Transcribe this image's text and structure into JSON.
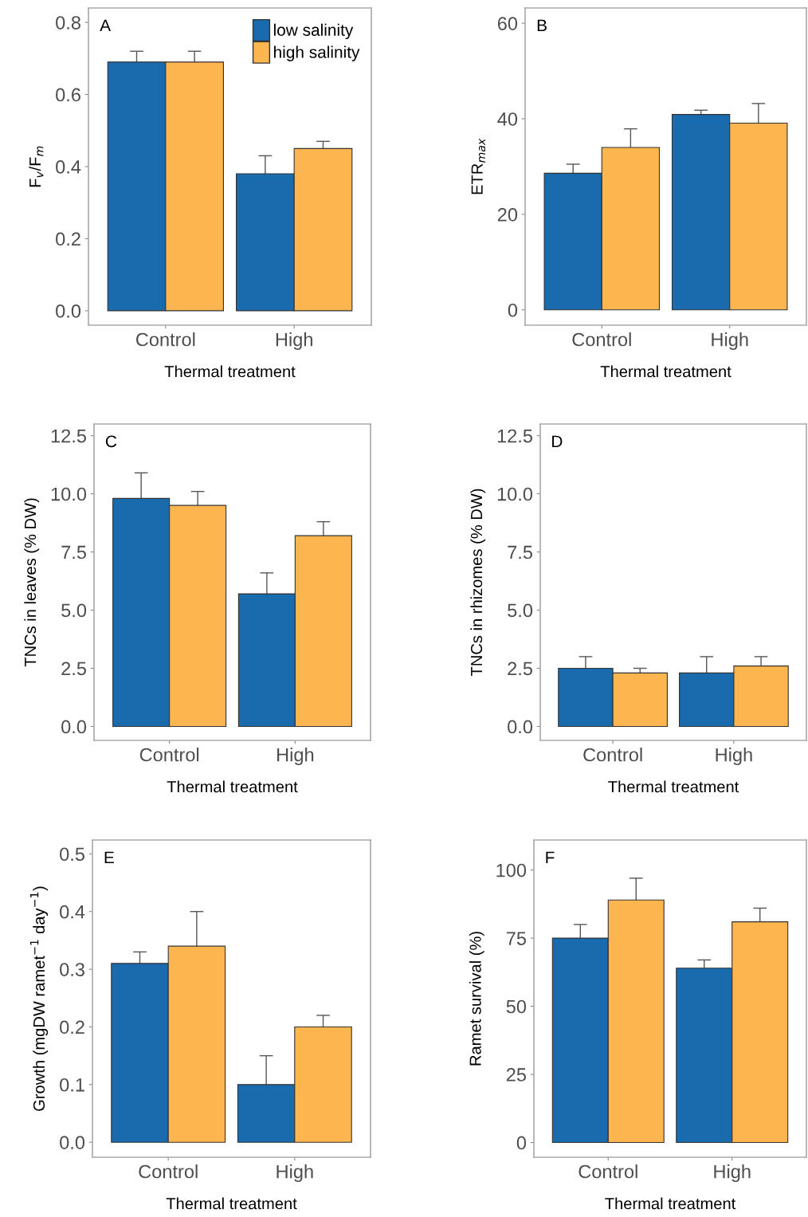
{
  "chart_data": [
    {
      "type": "bar",
      "xlabel": "Thermal treatment",
      "ylabel": "F$_{v}$/F$_{m}$",
      "categories": [
        "Control",
        "High"
      ],
      "ylim": [
        -0.04,
        0.84
      ],
      "yticks": [
        {
          "value": 0,
          "label": "0.0"
        },
        0.2,
        0.4,
        0.6,
        0.8
      ],
      "grid": false,
      "legend": "top right",
      "annotations": [
        "A"
      ],
      "series": [
        {
          "name": "low salinity",
          "color": "#1a6aae",
          "values": [
            0.69,
            0.38
          ],
          "errors": [
            0.03,
            0.05
          ]
        },
        {
          "name": "high salinity",
          "color": "#fdb64f",
          "values": [
            0.69,
            0.45
          ],
          "errors": [
            0.03,
            0.02
          ]
        }
      ]
    },
    {
      "type": "bar",
      "xlabel": "Thermal treatment",
      "ylabel": "ETR$_{max}$",
      "categories": [
        "Control",
        "High"
      ],
      "ylim": [
        -3.2,
        63.2
      ],
      "yticks": [
        0,
        20,
        40,
        60
      ],
      "grid": false,
      "annotations": [
        "B"
      ],
      "series": [
        {
          "color": "#1a6aae",
          "values": [
            28.6,
            40.9
          ],
          "errors": [
            1.9,
            0.9
          ]
        },
        {
          "color": "#fdb64f",
          "values": [
            34.0,
            39.1
          ],
          "errors": [
            3.9,
            4.1
          ]
        }
      ]
    },
    {
      "type": "bar",
      "xlabel": "Thermal treatment",
      "ylabel": "TNCs in leaves (% DW)",
      "categories": [
        "Control",
        "High"
      ],
      "ylim": [
        -0.6,
        13.0
      ],
      "yticks": [
        {
          "value": 0,
          "label": "0.0"
        },
        2.5,
        {
          "value": 5,
          "label": "5.0"
        },
        7.5,
        {
          "value": 10,
          "label": "10.0"
        },
        12.5
      ],
      "grid": false,
      "annotations": [
        "C"
      ],
      "series": [
        {
          "color": "#1a6aae",
          "values": [
            9.8,
            5.7
          ],
          "errors": [
            1.1,
            0.9
          ]
        },
        {
          "color": "#fdb64f",
          "values": [
            9.5,
            8.2
          ],
          "errors": [
            0.6,
            0.6
          ]
        }
      ]
    },
    {
      "type": "bar",
      "xlabel": "Thermal treatment",
      "ylabel": "TNCs in rhizomes (% DW)",
      "categories": [
        "Control",
        "High"
      ],
      "ylim": [
        -0.6,
        13.0
      ],
      "yticks": [
        {
          "value": 0,
          "label": "0.0"
        },
        2.5,
        {
          "value": 5,
          "label": "5.0"
        },
        7.5,
        {
          "value": 10,
          "label": "10.0"
        },
        12.5
      ],
      "grid": false,
      "annotations": [
        "D"
      ],
      "series": [
        {
          "color": "#1a6aae",
          "values": [
            2.5,
            2.3
          ],
          "errors": [
            0.5,
            0.7
          ]
        },
        {
          "color": "#fdb64f",
          "values": [
            2.3,
            2.6
          ],
          "errors": [
            0.2,
            0.4
          ]
        }
      ]
    },
    {
      "type": "bar",
      "xlabel": "Thermal treatment",
      "ylabel": "Growth (mgDW ramet$^{−1}$ day$^{−1}$)",
      "categories": [
        "Control",
        "High"
      ],
      "ylim": [
        -0.026,
        0.524
      ],
      "yticks": [
        {
          "value": 0,
          "label": "0.0"
        },
        0.1,
        0.2,
        0.3,
        0.4,
        0.5
      ],
      "grid": false,
      "annotations": [
        "E"
      ],
      "series": [
        {
          "color": "#1a6aae",
          "values": [
            0.31,
            0.1
          ],
          "errors": [
            0.02,
            0.05
          ]
        },
        {
          "color": "#fdb64f",
          "values": [
            0.34,
            0.2
          ],
          "errors": [
            0.06,
            0.02
          ]
        }
      ]
    },
    {
      "type": "bar",
      "xlabel": "Thermal treatment",
      "ylabel": "Ramet survival (%)",
      "categories": [
        "Control",
        "High"
      ],
      "ylim": [
        -5.4,
        111
      ],
      "yticks": [
        0,
        25,
        50,
        75,
        100
      ],
      "grid": false,
      "annotations": [
        "F"
      ],
      "series": [
        {
          "color": "#1a6aae",
          "values": [
            75,
            64
          ],
          "errors": [
            5,
            3
          ]
        },
        {
          "color": "#fdb64f",
          "values": [
            89,
            81
          ],
          "errors": [
            8,
            5
          ]
        }
      ]
    }
  ]
}
